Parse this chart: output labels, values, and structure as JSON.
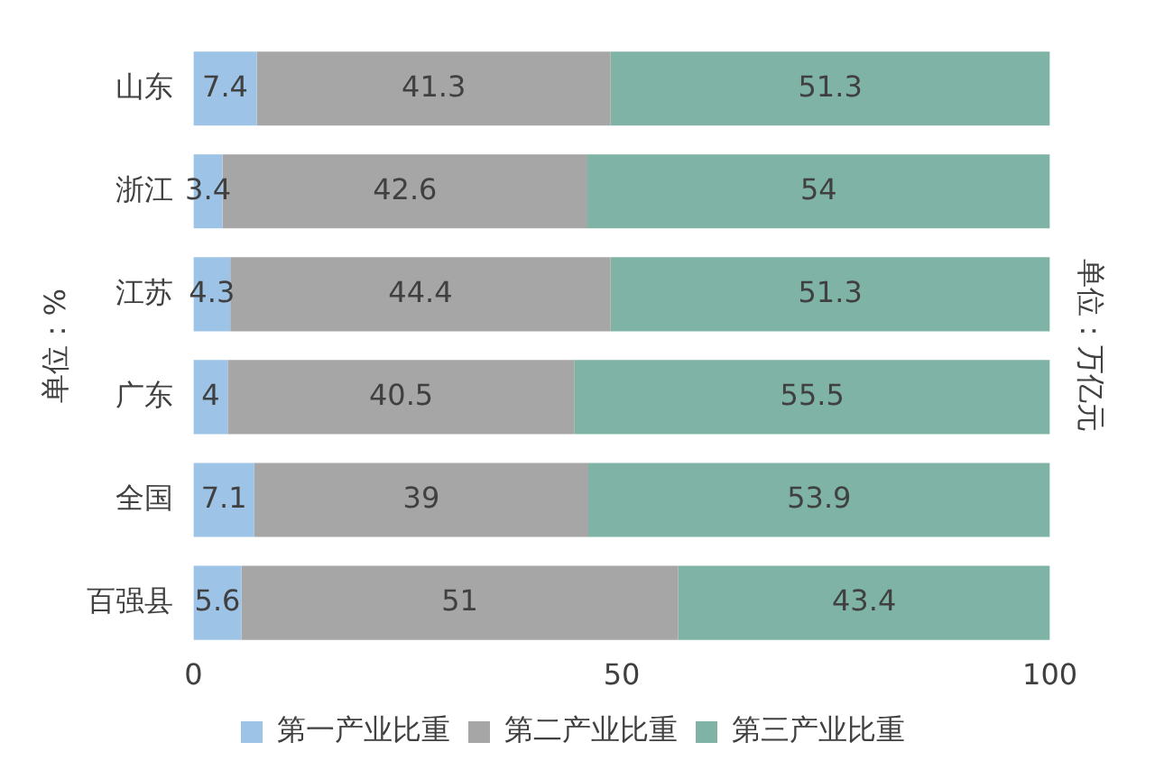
{
  "chart_data": {
    "type": "bar",
    "orientation": "horizontal",
    "stacked": true,
    "ylabel": "单位：%",
    "y2label": "单位：万亿元",
    "categories": [
      "山东",
      "浙江",
      "江苏",
      "广东",
      "全国",
      "百强县"
    ],
    "series": [
      {
        "name": "第一产业比重",
        "color": "#9dc3e6",
        "values": [
          7.4,
          3.4,
          4.3,
          4,
          7.1,
          5.6
        ]
      },
      {
        "name": "第二产业比重",
        "color": "#a6a6a6",
        "values": [
          41.3,
          42.6,
          44.4,
          40.5,
          39,
          51
        ]
      },
      {
        "name": "第三产业比重",
        "color": "#7fb3a5",
        "values": [
          51.3,
          54,
          51.3,
          55.5,
          53.9,
          43.4
        ]
      }
    ],
    "xlim": [
      0,
      100
    ],
    "xticks": [
      0,
      50,
      100
    ],
    "data_labels": true,
    "legend": "bottom",
    "grid": false
  }
}
